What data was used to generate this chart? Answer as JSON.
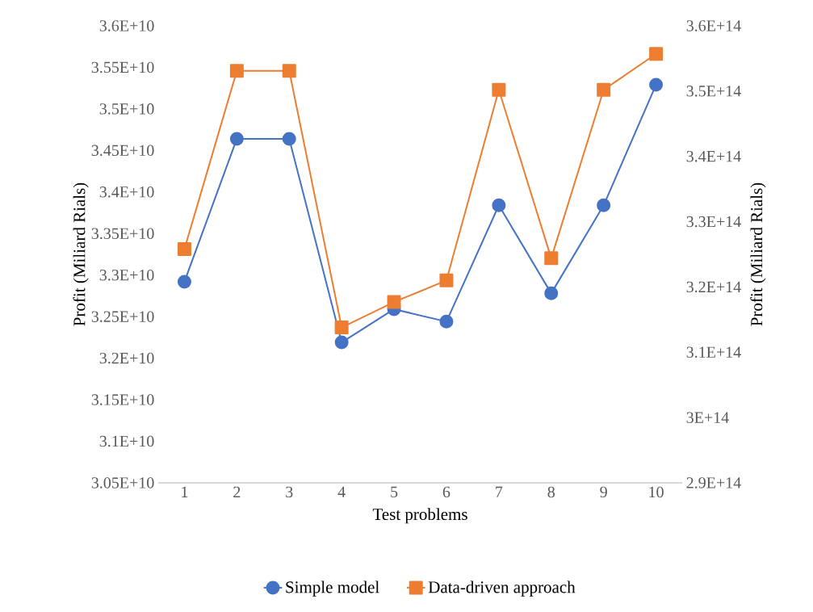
{
  "chart_data": {
    "type": "line",
    "xlabel": "Test problems",
    "ylabel": "Profit (Miliard Rials)",
    "y2label": "Profit (Miliard Rials)",
    "categories": [
      "1",
      "2",
      "3",
      "4",
      "5",
      "6",
      "7",
      "8",
      "9",
      "10"
    ],
    "series": [
      {
        "name": "Simple model",
        "color": "#4472c4",
        "marker": "circle",
        "values": [
          32920000000.0,
          34640000000.0,
          34640000000.0,
          32190000000.0,
          32590000000.0,
          32440000000.0,
          33840000000.0,
          32780000000.0,
          33840000000.0,
          35290000000.0
        ]
      },
      {
        "name": "Data-driven approach",
        "color": "#ed7d31",
        "marker": "square",
        "axis": "y2",
        "values": [
          325800000000000.0,
          353100000000000.0,
          353100000000000.0,
          313800000000000.0,
          317700000000000.0,
          321000000000000.0,
          350200000000000.0,
          324400000000000.0,
          350200000000000.0,
          355700000000000.0
        ]
      }
    ],
    "ylim": [
      30500000000.0,
      36000000000.0
    ],
    "yticks": [
      {
        "value": 30500000000.0,
        "label": "3.05E+10"
      },
      {
        "value": 31000000000.0,
        "label": "3.1E+10"
      },
      {
        "value": 31500000000.0,
        "label": "3.15E+10"
      },
      {
        "value": 32000000000.0,
        "label": "3.2E+10"
      },
      {
        "value": 32500000000.0,
        "label": "3.25E+10"
      },
      {
        "value": 33000000000.0,
        "label": "3.3E+10"
      },
      {
        "value": 33500000000.0,
        "label": "3.35E+10"
      },
      {
        "value": 34000000000.0,
        "label": "3.4E+10"
      },
      {
        "value": 34500000000.0,
        "label": "3.45E+10"
      },
      {
        "value": 35000000000.0,
        "label": "3.5E+10"
      },
      {
        "value": 35500000000.0,
        "label": "3.55E+10"
      },
      {
        "value": 36000000000.0,
        "label": "3.6E+10"
      }
    ],
    "y2lim": [
      290000000000000.0,
      360000000000000.0
    ],
    "y2ticks": [
      {
        "value": 290000000000000.0,
        "label": "2.9E+14"
      },
      {
        "value": 300000000000000.0,
        "label": "3E+14"
      },
      {
        "value": 310000000000000.0,
        "label": "3.1E+14"
      },
      {
        "value": 320000000000000.0,
        "label": "3.2E+14"
      },
      {
        "value": 330000000000000.0,
        "label": "3.3E+14"
      },
      {
        "value": 340000000000000.0,
        "label": "3.4E+14"
      },
      {
        "value": 350000000000000.0,
        "label": "3.5E+14"
      },
      {
        "value": 360000000000000.0,
        "label": "3.6E+14"
      }
    ],
    "grid": false,
    "legend": "bottom",
    "line_style": "solid"
  }
}
